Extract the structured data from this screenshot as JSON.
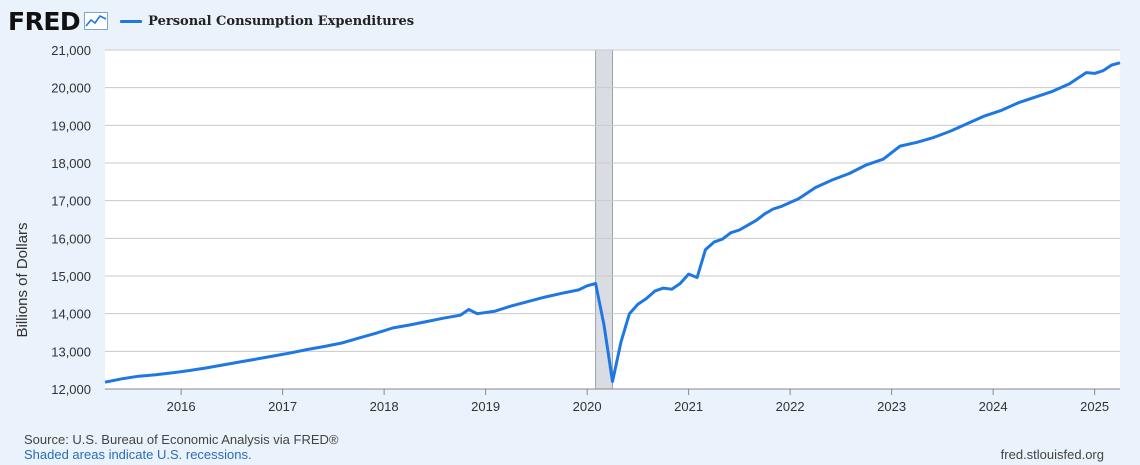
{
  "header": {
    "logo_text": "FRED",
    "logo_icon": "line-chart-icon",
    "legend_label": "Personal Consumption Expenditures"
  },
  "colors": {
    "series": "#1f77e4",
    "recession": "#d9dde3",
    "grid": "#c9c9c9",
    "plot_bg": "#ffffff"
  },
  "footer": {
    "source": "Source: U.S. Bureau of Economic Analysis via FRED®",
    "note": "Shaded areas indicate U.S. recessions.",
    "url": "fred.stlouisfed.org"
  },
  "chart_data": {
    "type": "line",
    "title": "",
    "xlabel": "",
    "ylabel": "Billions of Dollars",
    "xlim": [
      "2015-04",
      "2025-04"
    ],
    "ylim": [
      12000,
      21000
    ],
    "yticks": [
      12000,
      13000,
      14000,
      15000,
      16000,
      17000,
      18000,
      19000,
      20000,
      21000
    ],
    "ytick_labels": [
      "12,000",
      "13,000",
      "14,000",
      "15,000",
      "16,000",
      "17,000",
      "18,000",
      "19,000",
      "20,000",
      "21,000"
    ],
    "xticks": [
      "2016-01",
      "2017-01",
      "2018-01",
      "2019-01",
      "2020-01",
      "2021-01",
      "2022-01",
      "2023-01",
      "2024-01",
      "2025-01"
    ],
    "xtick_labels": [
      "2016",
      "2017",
      "2018",
      "2019",
      "2020",
      "2021",
      "2022",
      "2023",
      "2024",
      "2025"
    ],
    "grid": true,
    "legend": "top-left",
    "recessions": [
      {
        "start": "2020-02",
        "end": "2020-04"
      }
    ],
    "series": [
      {
        "name": "Personal Consumption Expenditures",
        "points": [
          [
            "2015-04",
            12180
          ],
          [
            "2015-06",
            12270
          ],
          [
            "2015-08",
            12340
          ],
          [
            "2015-10",
            12380
          ],
          [
            "2015-12",
            12430
          ],
          [
            "2016-02",
            12490
          ],
          [
            "2016-04",
            12560
          ],
          [
            "2016-06",
            12640
          ],
          [
            "2016-08",
            12720
          ],
          [
            "2016-10",
            12800
          ],
          [
            "2016-12",
            12880
          ],
          [
            "2017-02",
            12960
          ],
          [
            "2017-04",
            13050
          ],
          [
            "2017-06",
            13130
          ],
          [
            "2017-08",
            13220
          ],
          [
            "2017-10",
            13350
          ],
          [
            "2017-12",
            13480
          ],
          [
            "2018-02",
            13620
          ],
          [
            "2018-04",
            13700
          ],
          [
            "2018-06",
            13790
          ],
          [
            "2018-08",
            13880
          ],
          [
            "2018-10",
            13960
          ],
          [
            "2018-11",
            14110
          ],
          [
            "2018-12",
            14000
          ],
          [
            "2019-02",
            14060
          ],
          [
            "2019-04",
            14200
          ],
          [
            "2019-06",
            14320
          ],
          [
            "2019-08",
            14440
          ],
          [
            "2019-10",
            14540
          ],
          [
            "2019-12",
            14630
          ],
          [
            "2020-01",
            14740
          ],
          [
            "2020-02",
            14800
          ],
          [
            "2020-03",
            13700
          ],
          [
            "2020-04",
            12200
          ],
          [
            "2020-05",
            13250
          ],
          [
            "2020-06",
            14000
          ],
          [
            "2020-07",
            14250
          ],
          [
            "2020-08",
            14400
          ],
          [
            "2020-09",
            14600
          ],
          [
            "2020-10",
            14680
          ],
          [
            "2020-11",
            14650
          ],
          [
            "2020-12",
            14800
          ],
          [
            "2021-01",
            15050
          ],
          [
            "2021-02",
            14960
          ],
          [
            "2021-03",
            15700
          ],
          [
            "2021-04",
            15900
          ],
          [
            "2021-05",
            15980
          ],
          [
            "2021-06",
            16150
          ],
          [
            "2021-07",
            16220
          ],
          [
            "2021-08",
            16350
          ],
          [
            "2021-09",
            16480
          ],
          [
            "2021-10",
            16650
          ],
          [
            "2021-11",
            16780
          ],
          [
            "2021-12",
            16850
          ],
          [
            "2022-02",
            17050
          ],
          [
            "2022-04",
            17350
          ],
          [
            "2022-06",
            17550
          ],
          [
            "2022-08",
            17720
          ],
          [
            "2022-10",
            17950
          ],
          [
            "2022-12",
            18100
          ],
          [
            "2023-02",
            18450
          ],
          [
            "2023-04",
            18550
          ],
          [
            "2023-06",
            18680
          ],
          [
            "2023-08",
            18850
          ],
          [
            "2023-10",
            19050
          ],
          [
            "2023-12",
            19250
          ],
          [
            "2024-02",
            19400
          ],
          [
            "2024-04",
            19600
          ],
          [
            "2024-06",
            19750
          ],
          [
            "2024-08",
            19900
          ],
          [
            "2024-10",
            20100
          ],
          [
            "2024-12",
            20400
          ],
          [
            "2025-01",
            20380
          ],
          [
            "2025-02",
            20450
          ],
          [
            "2025-03",
            20600
          ],
          [
            "2025-04",
            20660
          ]
        ]
      }
    ]
  }
}
